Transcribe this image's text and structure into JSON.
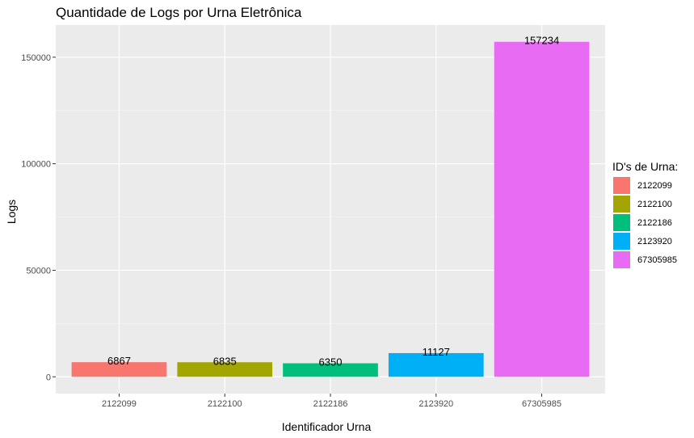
{
  "chart_data": {
    "type": "bar",
    "title": "Quantidade de Logs por Urna Eletrônica",
    "xlabel": "Identificador Urna",
    "ylabel": "Logs",
    "categories": [
      "2122099",
      "2122100",
      "2122186",
      "2123920",
      "67305985"
    ],
    "values": [
      6867,
      6835,
      6350,
      11127,
      157234
    ],
    "data_labels": [
      "6867",
      "6835",
      "6350",
      "11127",
      "157234"
    ],
    "colors": [
      "#F8766D",
      "#A3A500",
      "#00BF7D",
      "#00B0F6",
      "#E76BF3"
    ],
    "ylim": [
      -7862,
      165096
    ],
    "yticks": [
      0,
      50000,
      100000,
      150000
    ],
    "ytick_labels": [
      "0",
      "50000",
      "100000",
      "150000"
    ],
    "grid": true,
    "legend": {
      "title": "ID's de Urna:",
      "placement": "right",
      "entries": [
        "2122099",
        "2122100",
        "2122186",
        "2123920",
        "67305985"
      ]
    }
  }
}
